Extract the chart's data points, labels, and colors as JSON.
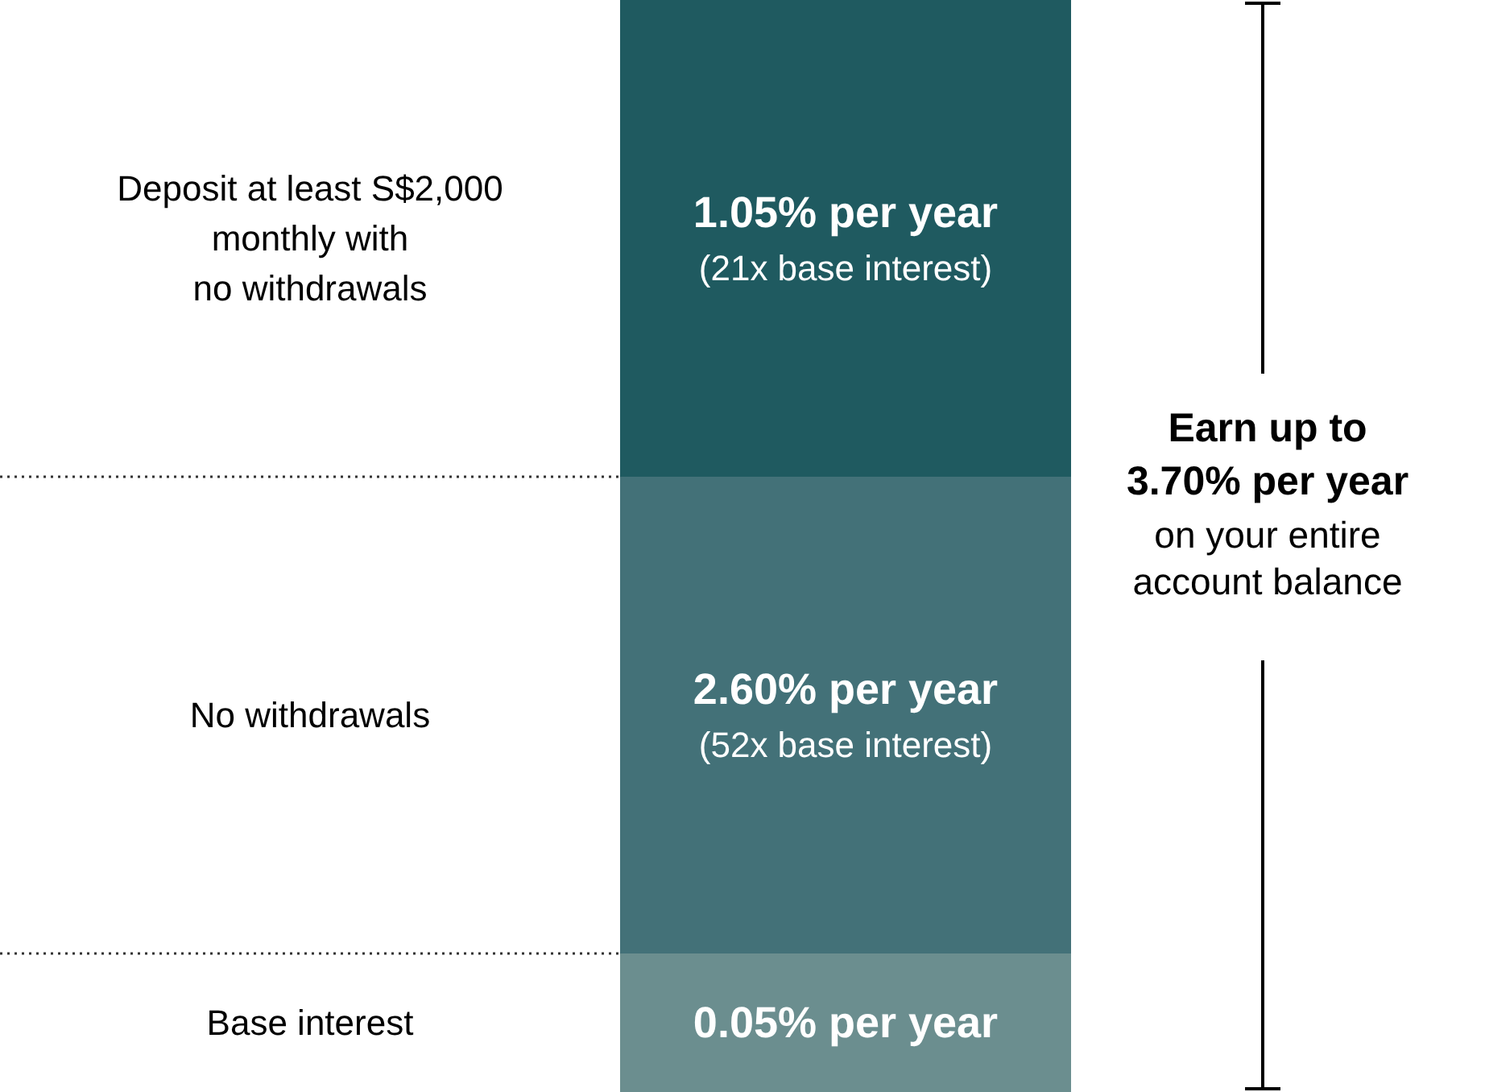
{
  "chart_data": {
    "type": "other",
    "categories": [
      "Deposit at least S$2,000\nmonthly with\nno withdrawals",
      "No withdrawals",
      "Base interest"
    ],
    "values": [
      1.05,
      2.6,
      0.05
    ],
    "colors": [
      "#1f5a60",
      "#437178",
      "#6b8e8f"
    ],
    "value_labels": [
      "1.05% per year\n(21x base interest)",
      "2.60% per year\n(52x base interest)",
      "0.05% per year"
    ],
    "annotations": [
      "Earn up to\n3.70% per year",
      "on your entire\naccount balance"
    ]
  }
}
